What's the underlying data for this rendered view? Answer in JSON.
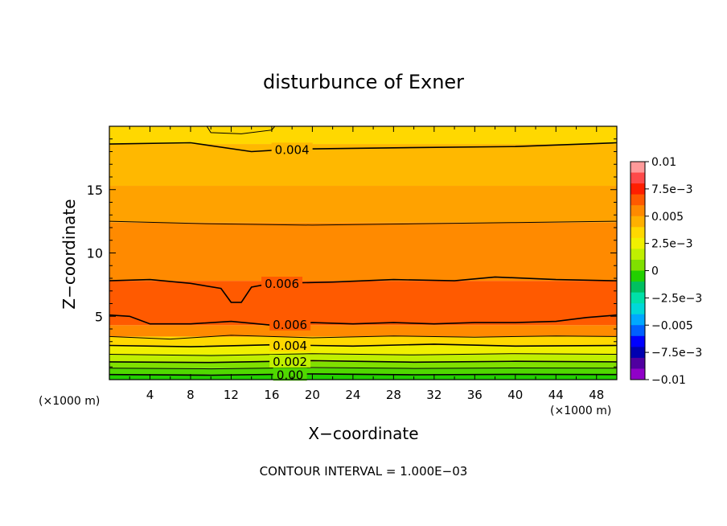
{
  "chart_data": {
    "type": "contour",
    "title": "disturbunce of Exner",
    "xlabel": "X−coordinate",
    "ylabel": "Z−coordinate",
    "x_unit_label": "(×1000 m)",
    "y_unit_label": "(×1000 m)",
    "footnote": "CONTOUR INTERVAL = 1.000E−03",
    "xlim": [
      0,
      50
    ],
    "ylim": [
      0,
      20
    ],
    "x_ticks": [
      4,
      8,
      12,
      16,
      20,
      24,
      28,
      32,
      36,
      40,
      44,
      48
    ],
    "y_ticks": [
      5,
      10,
      15
    ],
    "colorbar": {
      "range": [
        -0.01,
        0.01
      ],
      "tick_labels": [
        "0.01",
        "7.5e−3",
        "0.005",
        "2.5e−3",
        "0",
        "−2.5e−3",
        "−0.005",
        "−7.5e−3",
        "−0.01"
      ],
      "tick_values": [
        0.01,
        0.0075,
        0.005,
        0.0025,
        0,
        -0.0025,
        -0.005,
        -0.0075,
        -0.01
      ],
      "colors": [
        "#ff9a9a",
        "#ff4a4a",
        "#ff1f00",
        "#ff5a00",
        "#ff8a00",
        "#ffb000",
        "#ffd800",
        "#f0f000",
        "#c0ef00",
        "#80e000",
        "#22d000",
        "#00c060",
        "#00e0a8",
        "#00d8d8",
        "#00a8ff",
        "#0060ff",
        "#0000ff",
        "#0000b0",
        "#5000a0",
        "#9000c8"
      ]
    },
    "bands": [
      {
        "from_z": 0.0,
        "to_z": 0.4,
        "value": -0.0005,
        "color": "#22d000"
      },
      {
        "from_z": 0.4,
        "to_z": 0.9,
        "value": 0.0005,
        "color": "#50d800"
      },
      {
        "from_z": 0.9,
        "to_z": 1.4,
        "value": 0.0015,
        "color": "#80e000"
      },
      {
        "from_z": 1.4,
        "to_z": 2.0,
        "value": 0.0025,
        "color": "#c0ef00"
      },
      {
        "from_z": 2.0,
        "to_z": 2.7,
        "value": 0.0035,
        "color": "#f0f000"
      },
      {
        "from_z": 2.7,
        "to_z": 3.4,
        "value": 0.0045,
        "color": "#ffd800"
      },
      {
        "from_z": 3.4,
        "to_z": 4.3,
        "value": 0.0055,
        "color": "#ff8a00"
      },
      {
        "from_z": 4.3,
        "to_z": 7.8,
        "value": 0.0065,
        "color": "#ff5a00"
      },
      {
        "from_z": 7.8,
        "to_z": 12.4,
        "value": 0.0055,
        "color": "#ff8a00"
      },
      {
        "from_z": 12.4,
        "to_z": 15.3,
        "value": 0.0045,
        "color": "#ffa200"
      },
      {
        "from_z": 15.3,
        "to_z": 18.6,
        "value": 0.0045,
        "color": "#ffb800"
      },
      {
        "from_z": 18.6,
        "to_z": 20.0,
        "value": 0.0035,
        "color": "#ffd800"
      }
    ],
    "contours": [
      {
        "value": 0.0,
        "label": "0.00",
        "label_x": 17.8,
        "points": [
          [
            0,
            0.4
          ],
          [
            10,
            0.35
          ],
          [
            20,
            0.45
          ],
          [
            30,
            0.38
          ],
          [
            40,
            0.42
          ],
          [
            50,
            0.4
          ]
        ]
      },
      {
        "value": 0.001,
        "label": "",
        "points": [
          [
            0,
            0.9
          ],
          [
            10,
            0.85
          ],
          [
            20,
            0.95
          ],
          [
            30,
            0.88
          ],
          [
            40,
            0.92
          ],
          [
            50,
            0.9
          ]
        ]
      },
      {
        "value": 0.002,
        "label": "0.002",
        "label_x": 17.8,
        "points": [
          [
            0,
            1.4
          ],
          [
            10,
            1.35
          ],
          [
            20,
            1.5
          ],
          [
            30,
            1.38
          ],
          [
            40,
            1.45
          ],
          [
            50,
            1.4
          ]
        ]
      },
      {
        "value": 0.003,
        "label": "",
        "points": [
          [
            0,
            2.0
          ],
          [
            10,
            1.9
          ],
          [
            20,
            2.05
          ],
          [
            30,
            1.95
          ],
          [
            40,
            2.05
          ],
          [
            50,
            2.0
          ]
        ]
      },
      {
        "value": 0.004,
        "label": "0.004",
        "label_x": 17.8,
        "points": [
          [
            0,
            2.7
          ],
          [
            8,
            2.6
          ],
          [
            16,
            2.75
          ],
          [
            24,
            2.65
          ],
          [
            32,
            2.8
          ],
          [
            40,
            2.65
          ],
          [
            50,
            2.7
          ]
        ]
      },
      {
        "value": 0.005,
        "label": "",
        "points": [
          [
            0,
            3.4
          ],
          [
            6,
            3.2
          ],
          [
            12,
            3.5
          ],
          [
            20,
            3.3
          ],
          [
            28,
            3.45
          ],
          [
            36,
            3.35
          ],
          [
            44,
            3.45
          ],
          [
            50,
            3.4
          ]
        ]
      },
      {
        "value": 0.006,
        "label": "0.006",
        "label_x": 17.8,
        "points": [
          [
            0,
            5.1
          ],
          [
            2,
            5.0
          ],
          [
            4,
            4.4
          ],
          [
            8,
            4.4
          ],
          [
            12,
            4.6
          ],
          [
            16,
            4.3
          ],
          [
            20,
            4.5
          ],
          [
            24,
            4.4
          ],
          [
            28,
            4.5
          ],
          [
            32,
            4.4
          ],
          [
            36,
            4.5
          ],
          [
            40,
            4.5
          ],
          [
            44,
            4.6
          ],
          [
            47,
            4.9
          ],
          [
            50,
            5.1
          ]
        ]
      },
      {
        "value": 0.006,
        "label": "0.006",
        "label_x": 17.0,
        "points": [
          [
            0,
            7.8
          ],
          [
            4,
            7.9
          ],
          [
            8,
            7.6
          ],
          [
            11,
            7.2
          ],
          [
            12,
            6.1
          ],
          [
            13,
            6.1
          ],
          [
            14,
            7.3
          ],
          [
            16,
            7.6
          ],
          [
            22,
            7.7
          ],
          [
            28,
            7.9
          ],
          [
            34,
            7.8
          ],
          [
            38,
            8.1
          ],
          [
            44,
            7.9
          ],
          [
            50,
            7.8
          ]
        ]
      },
      {
        "value": 0.005,
        "label": "",
        "points": [
          [
            0,
            12.5
          ],
          [
            10,
            12.3
          ],
          [
            20,
            12.2
          ],
          [
            30,
            12.3
          ],
          [
            40,
            12.4
          ],
          [
            50,
            12.5
          ]
        ]
      },
      {
        "value": 0.004,
        "label": "0.004",
        "label_x": 18.0,
        "points": [
          [
            0,
            18.6
          ],
          [
            8,
            18.7
          ],
          [
            14,
            18.0
          ],
          [
            18,
            18.2
          ],
          [
            28,
            18.3
          ],
          [
            40,
            18.4
          ],
          [
            50,
            18.7
          ]
        ]
      },
      {
        "value": 0.003,
        "label": "",
        "points": [
          [
            9.6,
            20.0
          ],
          [
            10,
            19.5
          ],
          [
            13,
            19.4
          ],
          [
            16,
            19.7
          ],
          [
            16.3,
            20.0
          ]
        ]
      }
    ]
  }
}
